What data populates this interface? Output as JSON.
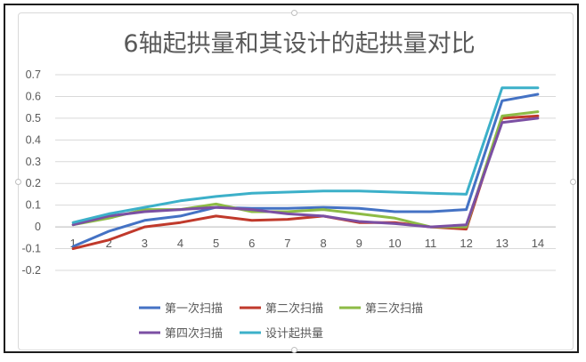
{
  "chart_data": {
    "type": "line",
    "title": "6轴起拱量和其设计的起拱量对比",
    "xlabel": "",
    "ylabel": "",
    "categories": [
      "1",
      "2",
      "3",
      "4",
      "5",
      "6",
      "7",
      "8",
      "9",
      "10",
      "11",
      "12",
      "13",
      "14"
    ],
    "ylim": [
      -0.2,
      0.7
    ],
    "yticks": [
      "0.7",
      "0.6",
      "0.5",
      "0.4",
      "0.3",
      "0.2",
      "0.1",
      "0",
      "-0.1",
      "-0.2"
    ],
    "grid": true,
    "legend_position": "bottom",
    "series": [
      {
        "name": "第一次扫描",
        "color": "#4472c4",
        "values": [
          -0.09,
          -0.02,
          0.03,
          0.05,
          0.09,
          0.085,
          0.085,
          0.09,
          0.085,
          0.07,
          0.07,
          0.08,
          0.58,
          0.61
        ]
      },
      {
        "name": "第二次扫描",
        "color": "#c0392b",
        "values": [
          -0.1,
          -0.06,
          0.0,
          0.02,
          0.05,
          0.03,
          0.035,
          0.05,
          0.02,
          0.02,
          0.0,
          -0.01,
          0.5,
          0.51
        ]
      },
      {
        "name": "第三次扫描",
        "color": "#8dbb45",
        "values": [
          0.01,
          0.04,
          0.08,
          0.08,
          0.105,
          0.07,
          0.07,
          0.08,
          0.06,
          0.04,
          0.0,
          0.0,
          0.51,
          0.53
        ]
      },
      {
        "name": "第四次扫描",
        "color": "#7b4fa3",
        "values": [
          0.01,
          0.05,
          0.07,
          0.08,
          0.09,
          0.08,
          0.06,
          0.05,
          0.025,
          0.015,
          0.0,
          0.01,
          0.48,
          0.5
        ]
      },
      {
        "name": "设计起拱量",
        "color": "#3cb0c9",
        "values": [
          0.02,
          0.06,
          0.09,
          0.12,
          0.14,
          0.155,
          0.16,
          0.165,
          0.165,
          0.16,
          0.155,
          0.15,
          0.64,
          0.64
        ]
      }
    ]
  }
}
